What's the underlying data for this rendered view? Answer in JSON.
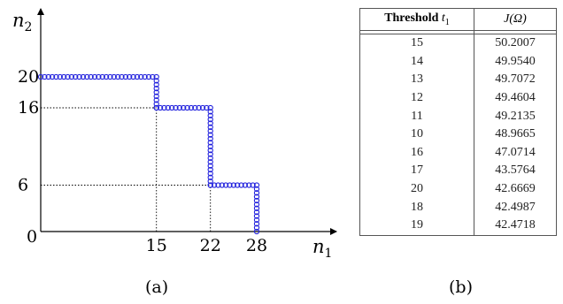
{
  "figure_a": {
    "y_axis_label": "n",
    "y_axis_sub": "2",
    "x_axis_label": "n",
    "x_axis_sub": "1",
    "origin_label": "0",
    "x_ticks": [
      "15",
      "22",
      "28"
    ],
    "y_ticks": [
      "20",
      "16",
      "6"
    ],
    "caption": "(a)"
  },
  "chart_data": {
    "type": "scatter",
    "title": "",
    "xlabel": "n1",
    "ylabel": "n2",
    "xlim": [
      0,
      31
    ],
    "ylim": [
      0,
      25
    ],
    "marker_color": "#2222dd",
    "x_ticks": [
      15,
      22,
      28
    ],
    "y_ticks": [
      20,
      16,
      6
    ],
    "dashed_guides": [
      {
        "from": [
          0,
          16
        ],
        "to": [
          15,
          16
        ]
      },
      {
        "from": [
          15,
          0
        ],
        "to": [
          15,
          16
        ]
      },
      {
        "from": [
          0,
          6
        ],
        "to": [
          22,
          6
        ]
      },
      {
        "from": [
          22,
          0
        ],
        "to": [
          22,
          6
        ]
      }
    ],
    "segments": [
      {
        "orientation": "horizontal",
        "y": 20,
        "x_from": 0,
        "x_to": 15
      },
      {
        "orientation": "vertical",
        "x": 15,
        "y_from": 20,
        "y_to": 16
      },
      {
        "orientation": "horizontal",
        "y": 16,
        "x_from": 15,
        "x_to": 22
      },
      {
        "orientation": "vertical",
        "x": 22,
        "y_from": 16,
        "y_to": 6
      },
      {
        "orientation": "horizontal",
        "y": 6,
        "x_from": 22,
        "x_to": 28
      },
      {
        "orientation": "vertical",
        "x": 28,
        "y_from": 6,
        "y_to": 0
      }
    ]
  },
  "table_b": {
    "header_threshold": "Threshold",
    "header_threshold_var": "t",
    "header_threshold_sub": "1",
    "header_j": "J(Ω)",
    "rows": [
      {
        "threshold": "15",
        "j": "50.2007"
      },
      {
        "threshold": "14",
        "j": "49.9540"
      },
      {
        "threshold": "13",
        "j": "49.7072"
      },
      {
        "threshold": "12",
        "j": "49.4604"
      },
      {
        "threshold": "11",
        "j": "49.2135"
      },
      {
        "threshold": "10",
        "j": "48.9665"
      },
      {
        "threshold": "16",
        "j": "47.0714"
      },
      {
        "threshold": "17",
        "j": "43.5764"
      },
      {
        "threshold": "20",
        "j": "42.6669"
      },
      {
        "threshold": "18",
        "j": "42.4987"
      },
      {
        "threshold": "19",
        "j": "42.4718"
      }
    ],
    "caption": "(b)"
  }
}
